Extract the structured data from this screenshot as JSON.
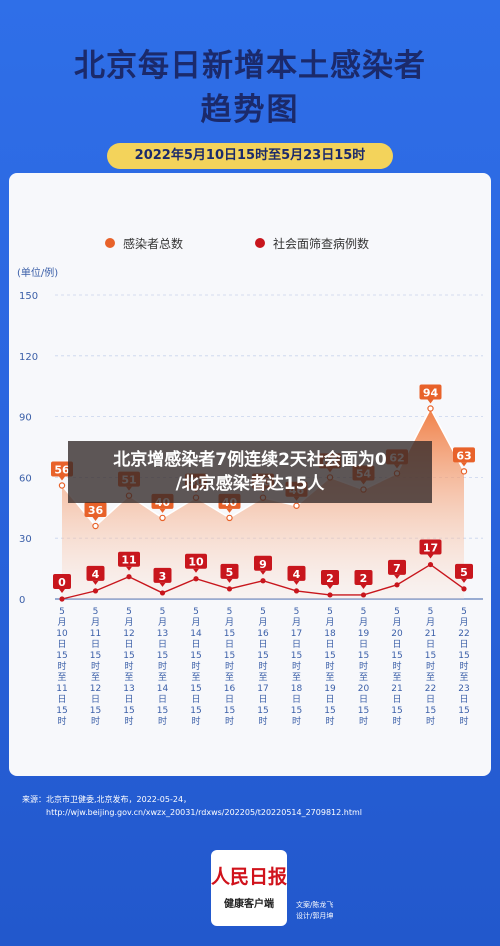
{
  "title_line1": "北京每日新增本土感染者",
  "title_line2": "趋势图",
  "date_range": "2022年5月10日15时至5月23日15时",
  "unit_label": "(单位/例)",
  "overlay_line1": "北京增感染者7例连续2天社会面为0",
  "overlay_line2": "/北京感染者达15人",
  "source_line1": "来源：北京市卫健委,北京发布，2022-05-24，",
  "source_line2": "http://wjw.beijing.gov.cn/xwzx_20031/rdxws/202205/t20220514_2709812.html",
  "logo_line1": "人民日报",
  "logo_line2": "健康客户端",
  "credit_line1": "文案/陈龙飞",
  "credit_line2": "设计/郭月坤",
  "colors": {
    "total": "#e8622a",
    "community": "#c8161d",
    "axis": "#3b5fa8"
  },
  "chart_data": {
    "type": "line",
    "ylim": [
      0,
      150
    ],
    "yticks": [
      0,
      30,
      60,
      90,
      120,
      150
    ],
    "x_labels": [
      "5月10日15时至11日15时",
      "5月11日15时至12日15时",
      "5月12日15时至13日15时",
      "5月13日15时至14日15时",
      "5月14日15时至15日15时",
      "5月15日15时至16日15时",
      "5月16日15时至17日15时",
      "5月17日15时至18日15时",
      "5月18日15时至19日15时",
      "5月19日15时至20日15时",
      "5月20日15时至21日15时",
      "5月21日15时至22日15时",
      "5月22日15时至23日15时"
    ],
    "series": [
      {
        "name": "感染者总数",
        "values": [
          56,
          36,
          51,
          40,
          50,
          40,
          50,
          46,
          60,
          54,
          62,
          94,
          63
        ]
      },
      {
        "name": "社会面筛查病例数",
        "values": [
          0,
          4,
          11,
          3,
          10,
          5,
          9,
          4,
          2,
          2,
          7,
          17,
          5
        ]
      }
    ]
  }
}
